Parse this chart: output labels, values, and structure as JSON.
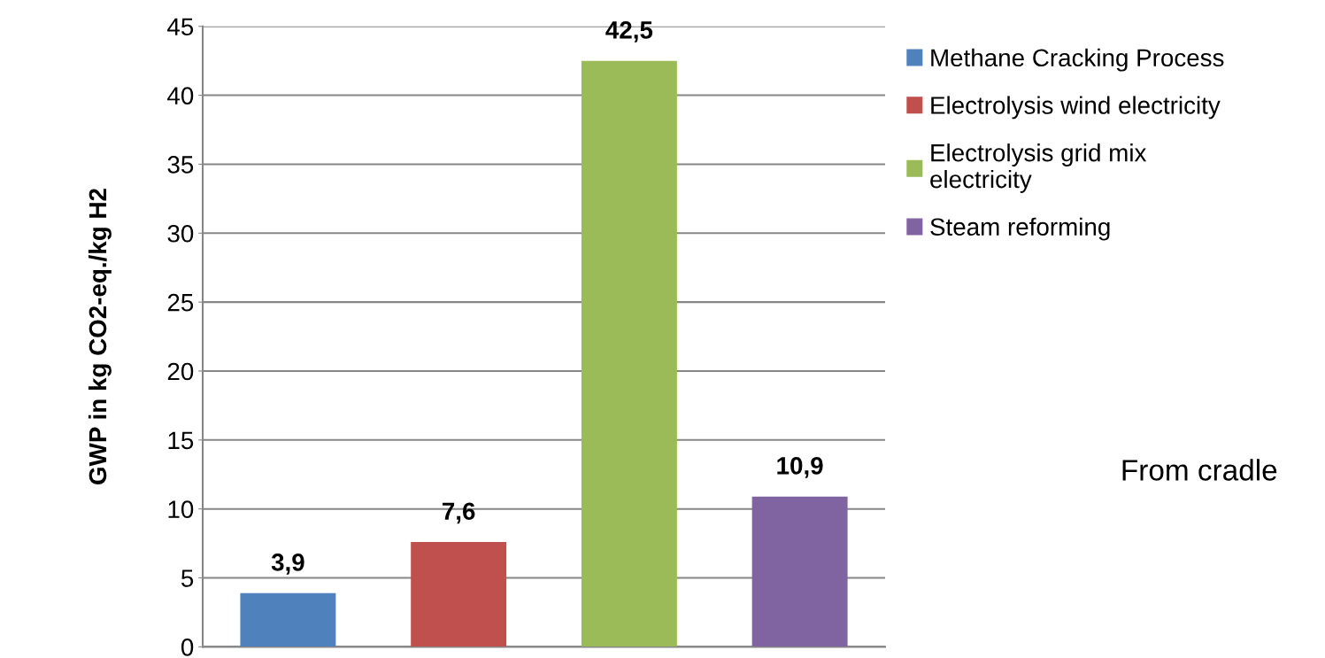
{
  "chart_data": {
    "type": "bar",
    "ylabel": "GWP in kg CO2-eq./kg H2",
    "categories": [
      null,
      null,
      null,
      null
    ],
    "series": [
      {
        "name": "Methane Cracking Process",
        "color": "#4f81bd",
        "values": [
          3.9,
          null,
          null,
          null
        ],
        "value_labels": [
          "3,9",
          null,
          null,
          null
        ]
      },
      {
        "name": "Electrolysis wind electricity",
        "color": "#c0504d",
        "values": [
          null,
          7.6,
          null,
          null
        ],
        "value_labels": [
          null,
          "7,6",
          null,
          null
        ]
      },
      {
        "name": "Electrolysis grid mix\nelectricity",
        "color": "#9bbb59",
        "values": [
          null,
          null,
          42.5,
          null
        ],
        "value_labels": [
          null,
          null,
          "42,5",
          null
        ]
      },
      {
        "name": "Steam reforming",
        "color": "#8064a2",
        "values": [
          null,
          null,
          null,
          10.9
        ],
        "value_labels": [
          null,
          null,
          null,
          "10,9"
        ]
      }
    ],
    "ylim": [
      0,
      45
    ],
    "yticks": [
      0,
      5,
      10,
      15,
      20,
      25,
      30,
      35,
      40,
      45
    ],
    "grid": "y",
    "legend": "right",
    "tick_labels": "y",
    "annotations": [
      "From cradle"
    ]
  }
}
